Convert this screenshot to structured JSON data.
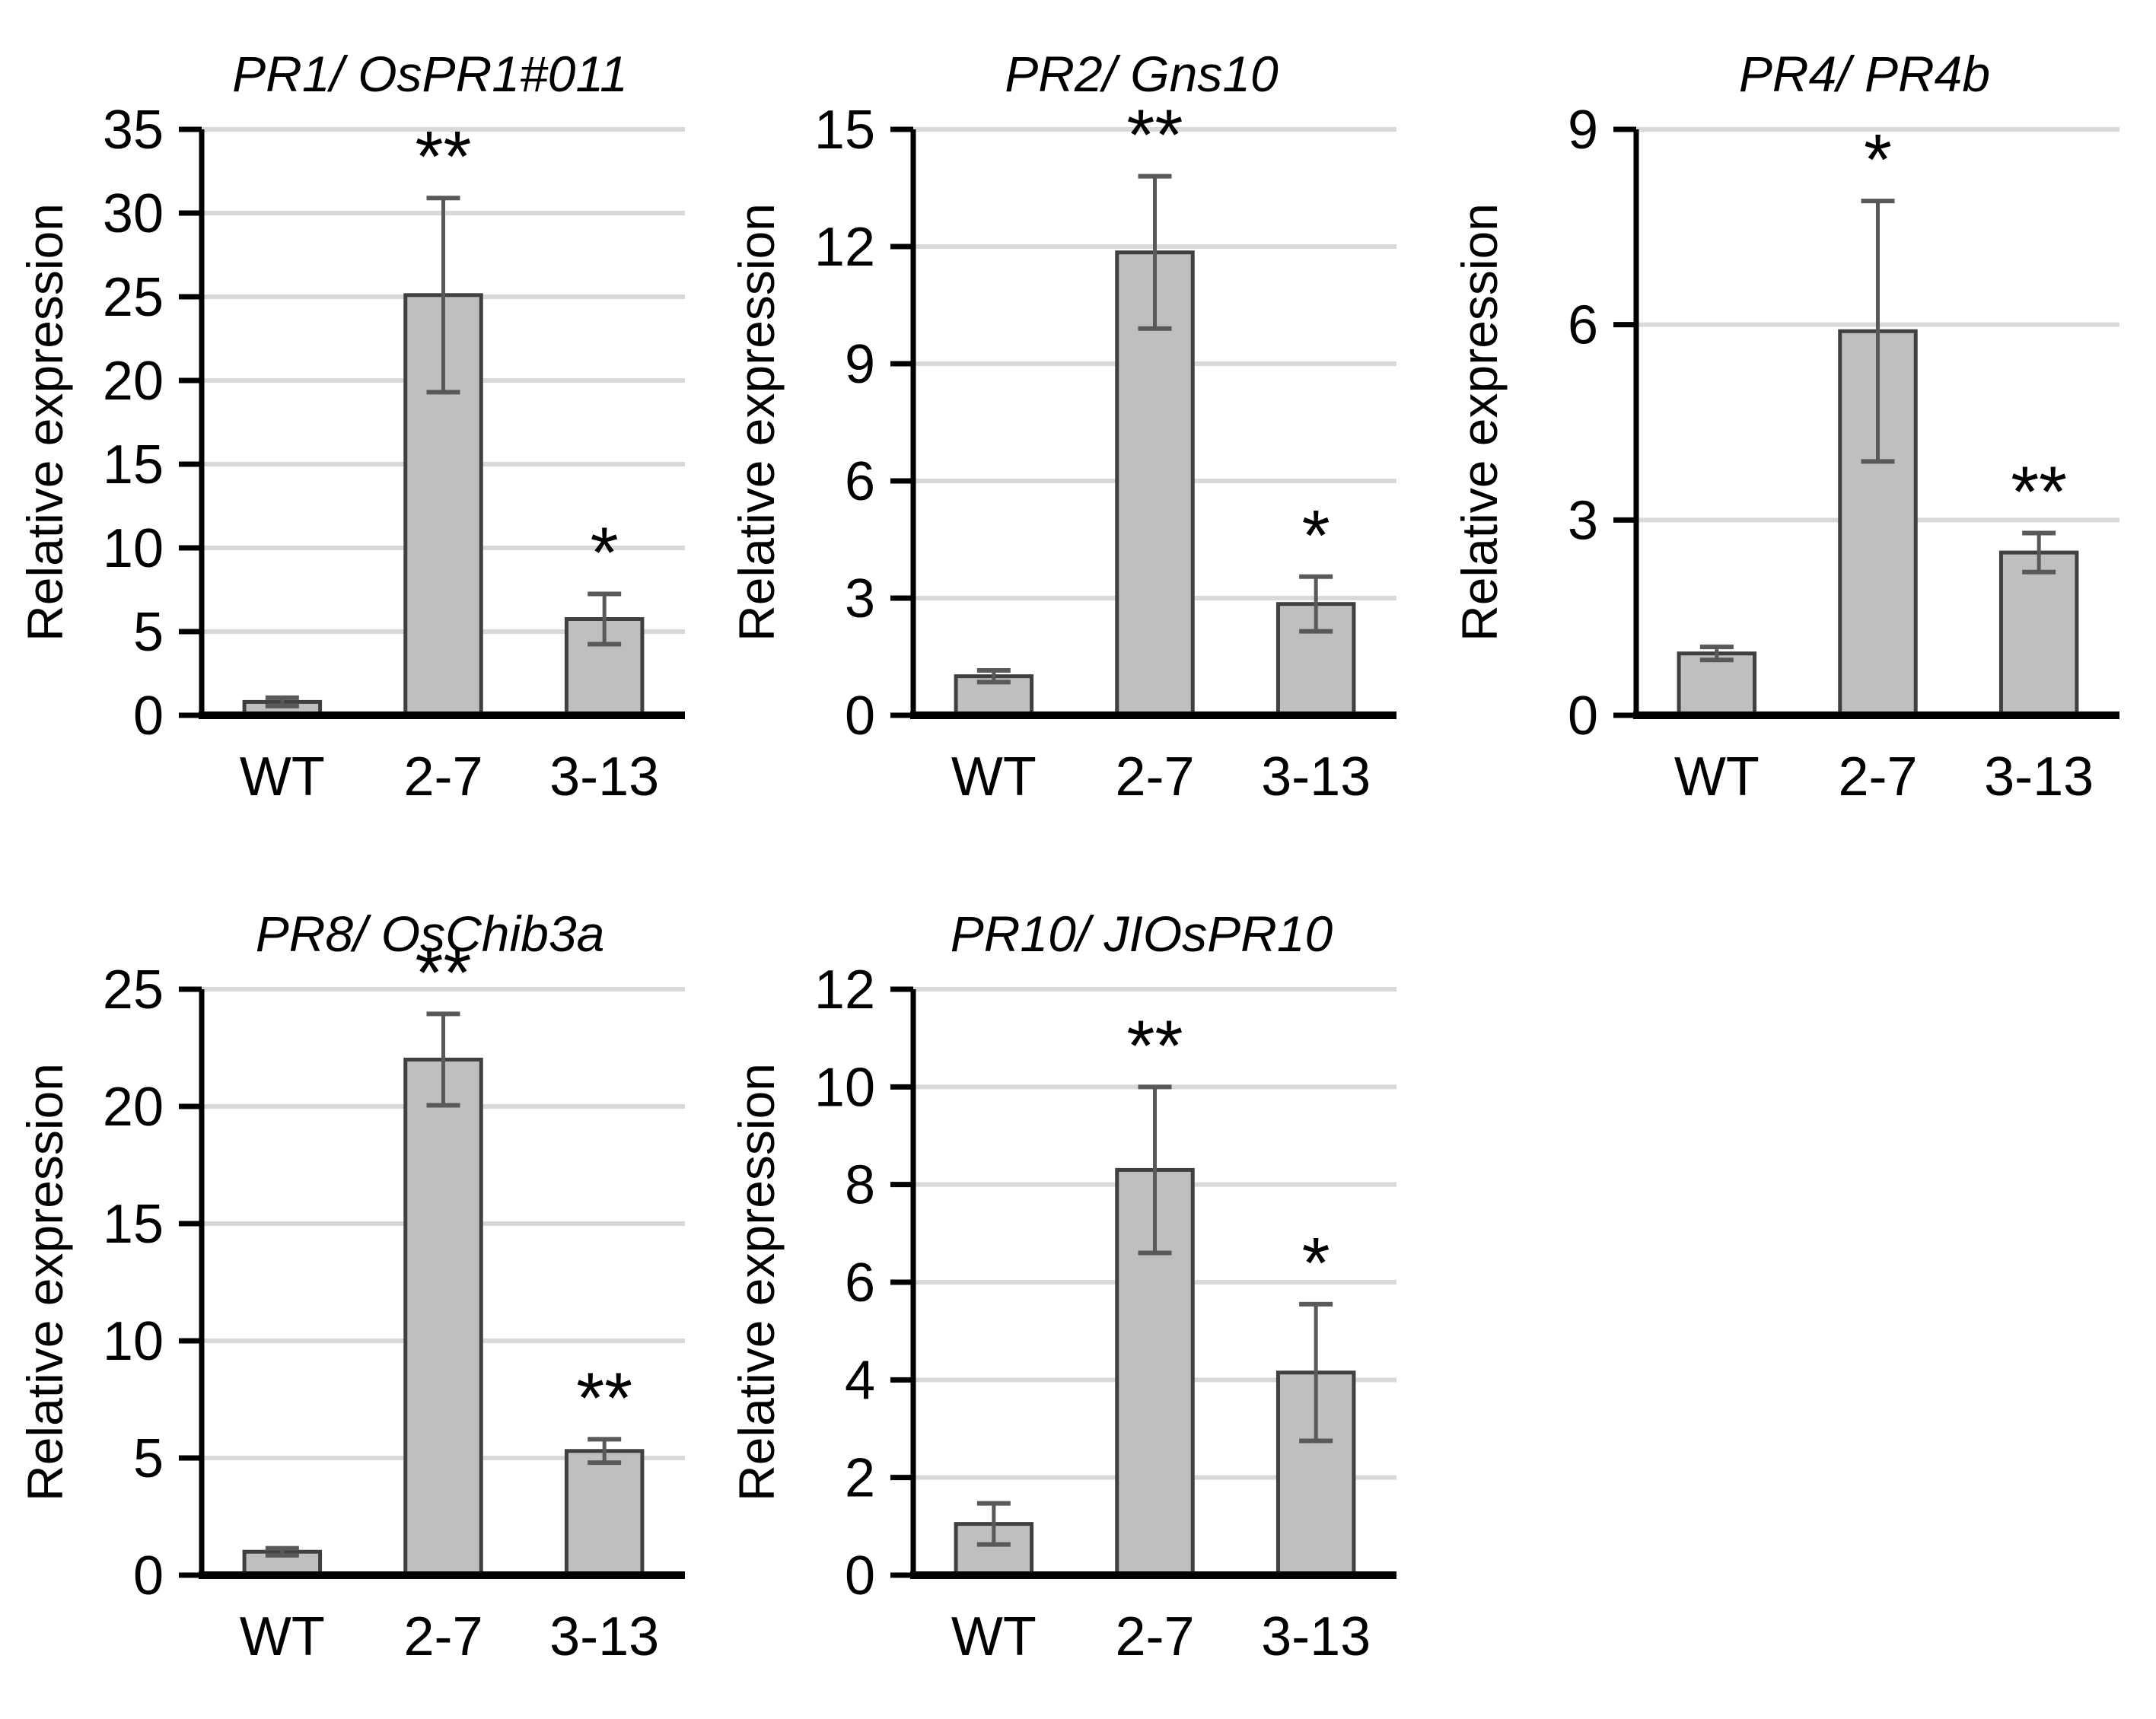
{
  "figure_background": "#ffffff",
  "styles": {
    "bar_fill": "#bfbfbf",
    "bar_stroke": "#404040",
    "error_color": "#595959",
    "gridline_color": "#d9d9d9",
    "axis_color": "#000000",
    "text_color": "#000000"
  },
  "chart_data": [
    {
      "type": "bar",
      "title": "PR1/ OsPR1#011",
      "ylabel": "Relative expression",
      "xlabel": "",
      "categories": [
        "WT",
        "2-7",
        "3-13"
      ],
      "values": [
        0.8,
        25.1,
        5.75
      ],
      "errors": [
        0.25,
        5.8,
        1.5
      ],
      "significance": [
        "",
        "**",
        "*"
      ],
      "ylim": [
        0,
        35
      ],
      "yticks": [
        0,
        5,
        10,
        15,
        20,
        25,
        30,
        35
      ],
      "grid": true,
      "legend": "none"
    },
    {
      "type": "bar",
      "title": "PR2/ Gns10",
      "ylabel": "Relative expression",
      "xlabel": "",
      "categories": [
        "WT",
        "2-7",
        "3-13"
      ],
      "values": [
        1.0,
        11.85,
        2.85
      ],
      "errors": [
        0.15,
        1.95,
        0.7
      ],
      "significance": [
        "",
        "**",
        "*"
      ],
      "ylim": [
        0,
        15
      ],
      "yticks": [
        0,
        3,
        6,
        9,
        12,
        15
      ],
      "grid": true,
      "legend": "none"
    },
    {
      "type": "bar",
      "title": "PR4/ PR4b",
      "ylabel": "Relative expression",
      "xlabel": "",
      "categories": [
        "WT",
        "2-7",
        "3-13"
      ],
      "values": [
        0.95,
        5.9,
        2.5
      ],
      "errors": [
        0.1,
        2.0,
        0.3
      ],
      "significance": [
        "",
        "*",
        "**"
      ],
      "ylim": [
        0,
        9
      ],
      "yticks": [
        0,
        3,
        6,
        9
      ],
      "grid": true,
      "legend": "none"
    },
    {
      "type": "bar",
      "title": "PR8/ OsChib3a",
      "ylabel": "Relative expression",
      "xlabel": "",
      "categories": [
        "WT",
        "2-7",
        "3-13"
      ],
      "values": [
        1.0,
        22.0,
        5.3
      ],
      "errors": [
        0.15,
        1.95,
        0.5
      ],
      "significance": [
        "",
        "**",
        "**"
      ],
      "ylim": [
        0,
        25
      ],
      "yticks": [
        0,
        5,
        10,
        15,
        20,
        25
      ],
      "grid": true,
      "legend": "none"
    },
    {
      "type": "bar",
      "title": "PR10/ JIOsPR10",
      "ylabel": "Relative expression",
      "xlabel": "",
      "categories": [
        "WT",
        "2-7",
        "3-13"
      ],
      "values": [
        1.05,
        8.3,
        4.15
      ],
      "errors": [
        0.42,
        1.7,
        1.4
      ],
      "significance": [
        "",
        "**",
        "*"
      ],
      "ylim": [
        0,
        12
      ],
      "yticks": [
        0,
        2,
        4,
        6,
        8,
        10,
        12
      ],
      "grid": true,
      "legend": "none"
    }
  ]
}
